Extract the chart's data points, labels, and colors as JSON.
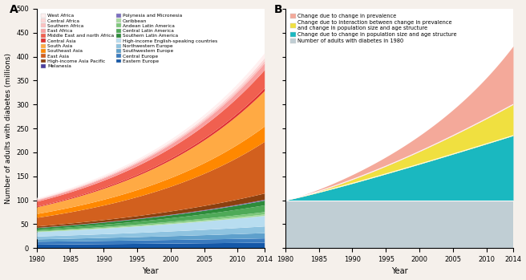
{
  "years_fine_start": 1980,
  "years_fine_end": 2014,
  "panel_A": {
    "regions_bottom_to_top": [
      "Eastern Europe",
      "Central Europe",
      "Southwestern Europe",
      "Northwestern Europe",
      "High-income English-speaking countries",
      "Caribbean",
      "Andean Latin America",
      "Central Latin America",
      "Southern Latin America",
      "Polynesia and Micronesia",
      "Melanesia",
      "High-income Asia Pacific",
      "East Asia",
      "Southeast Asia",
      "South Asia",
      "Central Asia",
      "Middle East and north Africa",
      "East Africa",
      "Southern Africa",
      "Central Africa",
      "West Africa"
    ],
    "colors_bottom_to_top": [
      "#1558a8",
      "#3a7bbf",
      "#5ea0cc",
      "#8ec3e0",
      "#b8ddf0",
      "#a8dba0",
      "#7dc87a",
      "#4faa58",
      "#2d8b3a",
      "#7b6ec0",
      "#4b3e9e",
      "#8b4010",
      "#d2601e",
      "#ff8800",
      "#ffaa44",
      "#e03030",
      "#f06050",
      "#f9a0a0",
      "#fbc0c0",
      "#fdd8d8",
      "#fff0f0"
    ],
    "values_1980_bottom_to_top": [
      8,
      6,
      5,
      6,
      9,
      1,
      1.5,
      3,
      3,
      0.2,
      0.3,
      3,
      18,
      8,
      14,
      1.5,
      10,
      3,
      1,
      1,
      2
    ],
    "values_2014_bottom_to_top": [
      12,
      9,
      11,
      14,
      22,
      3,
      5,
      14,
      10,
      0.8,
      1,
      13,
      108,
      32,
      74,
      6,
      38,
      14,
      5,
      6,
      10
    ],
    "legend_order": [
      "West Africa",
      "Central Africa",
      "Southern Africa",
      "East Africa",
      "Middle East and north Africa",
      "Central Asia",
      "South Asia",
      "Southeast Asia",
      "East Asia",
      "High-income Asia Pacific",
      "Melanesia",
      "Polynesia and Micronesia",
      "Caribbean",
      "Andean Latin America",
      "Central Latin America",
      "Southern Latin America",
      "High-income English-speaking countries",
      "Northwestern Europe",
      "Southwestern Europe",
      "Central Europe",
      "Eastern Europe"
    ],
    "legend_colors": [
      "#fff0f0",
      "#fdd8d8",
      "#fbc0c0",
      "#f9a0a0",
      "#f06050",
      "#e03030",
      "#ffaa44",
      "#ff8800",
      "#d2601e",
      "#8b4010",
      "#4b3e9e",
      "#7b6ec0",
      "#a8dba0",
      "#7dc87a",
      "#4faa58",
      "#2d8b3a",
      "#b8ddf0",
      "#8ec3e0",
      "#5ea0cc",
      "#3a7bbf",
      "#1558a8"
    ]
  },
  "panel_B": {
    "labels": [
      "Change due to change in prevalence",
      "Change due to interaction between change in prevalence\nand change in population size and age structure",
      "Change due to change in population size and age structure",
      "Number of adults with diabetes in 1980"
    ],
    "colors": [
      "#f4a99a",
      "#f0e040",
      "#1ab8c0",
      "#c0ced4"
    ],
    "base_flat": 100,
    "pop_2014": 135,
    "interaction_2014": 65,
    "prevalence_2014": 122,
    "pop_power": 1.1,
    "interaction_power": 1.7,
    "prevalence_exp": 2.8
  },
  "ylim": [
    0,
    500
  ],
  "yticks": [
    0,
    50,
    100,
    150,
    200,
    250,
    300,
    350,
    400,
    450,
    500
  ],
  "xticks": [
    1980,
    1985,
    1990,
    1995,
    2000,
    2005,
    2010,
    2014
  ],
  "bg_color": "#f5f0eb",
  "title_A": "A",
  "title_B": "B",
  "xlabel": "Year",
  "ylabel": "Number of adults with diabetes (millions)"
}
